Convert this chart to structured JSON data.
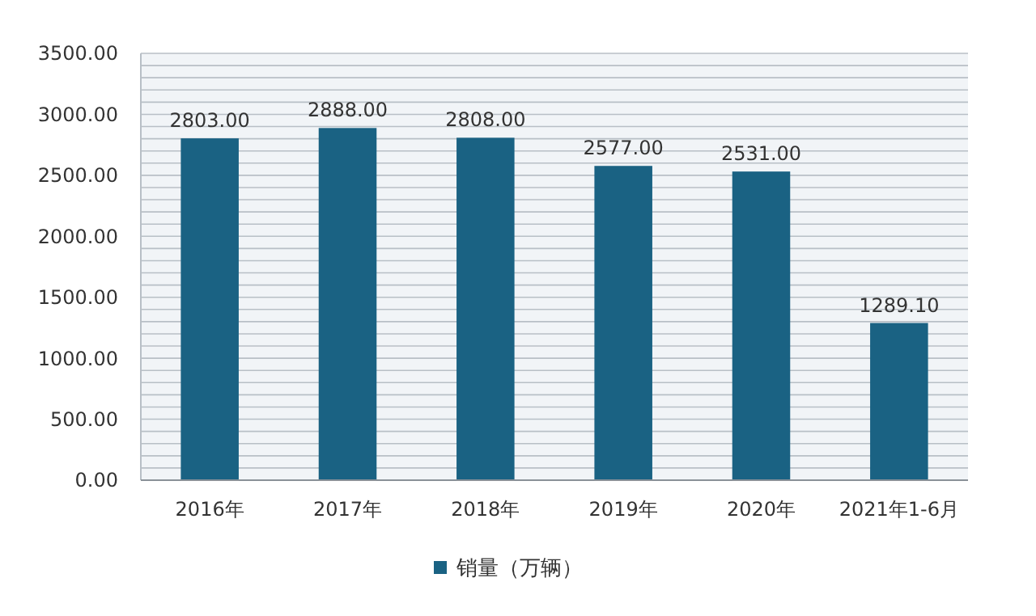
{
  "chart_data": {
    "type": "bar",
    "categories": [
      "2016年",
      "2017年",
      "2018年",
      "2019年",
      "2020年",
      "2021年1-6月"
    ],
    "series": [
      {
        "name": "销量（万辆）",
        "color": "#1a6283",
        "values": [
          2803,
          2888,
          2808,
          2577,
          2531,
          1289.1
        ]
      }
    ],
    "value_labels": [
      "2803.00",
      "2888.00",
      "2808.00",
      "2577.00",
      "2531.00",
      "1289.10"
    ],
    "ylim": [
      0,
      3500
    ],
    "yticks": [
      {
        "value": 0,
        "label": "0.00"
      },
      {
        "value": 100,
        "label": null
      },
      {
        "value": 200,
        "label": null
      },
      {
        "value": 300,
        "label": null
      },
      {
        "value": 400,
        "label": null
      },
      {
        "value": 500,
        "label": "500.00"
      },
      {
        "value": 600,
        "label": null
      },
      {
        "value": 700,
        "label": null
      },
      {
        "value": 800,
        "label": null
      },
      {
        "value": 900,
        "label": null
      },
      {
        "value": 1000,
        "label": "1000.00"
      },
      {
        "value": 1100,
        "label": null
      },
      {
        "value": 1200,
        "label": null
      },
      {
        "value": 1300,
        "label": null
      },
      {
        "value": 1400,
        "label": null
      },
      {
        "value": 1500,
        "label": "1500.00"
      },
      {
        "value": 1600,
        "label": null
      },
      {
        "value": 1700,
        "label": null
      },
      {
        "value": 1800,
        "label": null
      },
      {
        "value": 1900,
        "label": null
      },
      {
        "value": 2000,
        "label": "2000.00"
      },
      {
        "value": 2100,
        "label": null
      },
      {
        "value": 2200,
        "label": null
      },
      {
        "value": 2300,
        "label": null
      },
      {
        "value": 2400,
        "label": null
      },
      {
        "value": 2500,
        "label": "2500.00"
      },
      {
        "value": 2600,
        "label": null
      },
      {
        "value": 2700,
        "label": null
      },
      {
        "value": 2800,
        "label": null
      },
      {
        "value": 2900,
        "label": null
      },
      {
        "value": 3000,
        "label": "3000.00"
      },
      {
        "value": 3100,
        "label": null
      },
      {
        "value": 3200,
        "label": null
      },
      {
        "value": 3300,
        "label": null
      },
      {
        "value": 3400,
        "label": null
      },
      {
        "value": 3500,
        "label": "3500.00"
      }
    ],
    "grid": "y",
    "legend": "bottom"
  }
}
